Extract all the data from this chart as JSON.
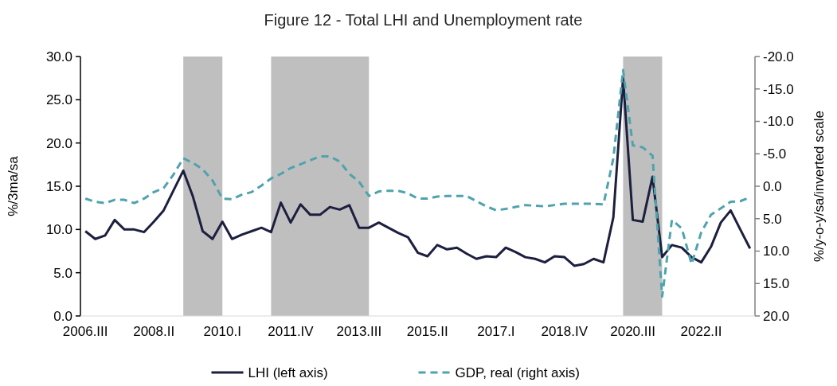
{
  "chart_data": {
    "type": "line",
    "title": "Figure 12 - Total LHI and Unemployment rate",
    "ylabel": "%/3ma/sa",
    "y2label": "%/y-o-y/sa/inverted scale",
    "x": [
      "2006-07",
      "2006-10",
      "2007-01",
      "2007-04",
      "2007-07",
      "2007-10",
      "2008-01",
      "2008-04",
      "2008-07",
      "2008-10",
      "2009-01",
      "2009-04",
      "2009-07",
      "2009-10",
      "2010-01",
      "2010-04",
      "2010-07",
      "2010-10",
      "2011-01",
      "2011-04",
      "2011-07",
      "2011-10",
      "2012-01",
      "2012-04",
      "2012-07",
      "2012-10",
      "2013-01",
      "2013-04",
      "2013-07",
      "2013-10",
      "2014-01",
      "2014-04",
      "2014-07",
      "2014-10",
      "2015-01",
      "2015-04",
      "2015-07",
      "2015-10",
      "2016-01",
      "2016-04",
      "2016-07",
      "2016-10",
      "2017-01",
      "2017-04",
      "2017-07",
      "2017-10",
      "2018-01",
      "2018-04",
      "2018-07",
      "2018-10",
      "2019-01",
      "2019-04",
      "2019-07",
      "2019-10",
      "2020-01",
      "2020-04",
      "2020-07",
      "2020-10",
      "2021-01",
      "2021-04",
      "2021-07",
      "2021-10",
      "2022-01",
      "2022-04",
      "2022-07",
      "2022-10",
      "2023-01",
      "2023-04",
      "2023-07"
    ],
    "xlim": [
      "2006-05-16",
      "2023-08-16"
    ],
    "xticks": [
      {
        "value": "2006-07",
        "label": "2006.III"
      },
      {
        "value": "2008-04",
        "label": "2008.II"
      },
      {
        "value": "2010-01",
        "label": "2010.I"
      },
      {
        "value": "2011-10",
        "label": "2011.IV"
      },
      {
        "value": "2013-07",
        "label": "2013.III"
      },
      {
        "value": "2015-04",
        "label": "2015.II"
      },
      {
        "value": "2017-01",
        "label": "2017.I"
      },
      {
        "value": "2018-10",
        "label": "2018.IV"
      },
      {
        "value": "2020-07",
        "label": "2020.III"
      },
      {
        "value": "2022-04",
        "label": "2022.II"
      }
    ],
    "ylim": [
      0,
      30
    ],
    "yticks": [
      {
        "value": 0,
        "label": "0.0"
      },
      {
        "value": 5,
        "label": "5.0"
      },
      {
        "value": 10,
        "label": "10.0"
      },
      {
        "value": 15,
        "label": "15.0"
      },
      {
        "value": 20,
        "label": "20.0"
      },
      {
        "value": 25,
        "label": "25.0"
      },
      {
        "value": 30,
        "label": "30.0"
      }
    ],
    "y2lim": [
      20,
      -20
    ],
    "y2ticks": [
      {
        "value": -20,
        "label": "-20.0"
      },
      {
        "value": -15,
        "label": "-15.0"
      },
      {
        "value": -10,
        "label": "-10.0"
      },
      {
        "value": -5,
        "label": "-5.0"
      },
      {
        "value": 0,
        "label": "0.0"
      },
      {
        "value": 5,
        "label": "5.0"
      },
      {
        "value": 10,
        "label": "10.0"
      },
      {
        "value": 15,
        "label": "15.0"
      },
      {
        "value": 20,
        "label": "20.0"
      }
    ],
    "series": [
      {
        "name": "LHI (left axis)",
        "color": "#1c1f3f",
        "line_style": "solid",
        "values": [
          9.8,
          8.9,
          9.3,
          11.1,
          10.0,
          10.0,
          9.7,
          10.9,
          12.2,
          14.5,
          16.8,
          13.8,
          9.8,
          8.9,
          10.9,
          8.9,
          9.4,
          9.8,
          10.2,
          9.7,
          13.1,
          10.8,
          12.9,
          11.7,
          11.7,
          12.6,
          12.3,
          12.8,
          10.2,
          10.2,
          10.8,
          10.2,
          9.6,
          9.1,
          7.3,
          6.9,
          8.2,
          7.7,
          7.9,
          7.2,
          6.6,
          6.9,
          6.8,
          7.9,
          7.4,
          6.8,
          6.6,
          6.2,
          6.9,
          6.8,
          5.8,
          6.0,
          6.6,
          6.2,
          11.4,
          27.5,
          11.1,
          10.9,
          16.1,
          6.8,
          8.2,
          7.9,
          6.8,
          6.2,
          8.0,
          10.8,
          12.2,
          10.0,
          7.8
        ]
      },
      {
        "name": "GDP, real (right axis)",
        "color": "#4ea3ad",
        "axis": "y2",
        "line_style": "dashed",
        "values": [
          1.9,
          2.4,
          2.6,
          2.1,
          2.1,
          2.6,
          1.9,
          0.9,
          0.3,
          -1.8,
          -4.3,
          -3.6,
          -2.6,
          -0.9,
          1.9,
          2.0,
          1.3,
          0.9,
          -0.1,
          -1.2,
          -1.9,
          -2.8,
          -3.4,
          -4.0,
          -4.6,
          -4.6,
          -3.8,
          -1.9,
          -0.7,
          1.5,
          0.8,
          0.7,
          0.7,
          1.1,
          1.9,
          1.9,
          1.6,
          1.5,
          1.5,
          1.5,
          2.3,
          3.1,
          3.7,
          3.5,
          3.2,
          2.9,
          3.0,
          3.1,
          2.9,
          2.7,
          2.7,
          2.7,
          2.7,
          2.8,
          -4.3,
          -17.9,
          -6.3,
          -6.0,
          -4.7,
          17.0,
          5.2,
          6.5,
          12.0,
          7.1,
          4.4,
          3.4,
          2.4,
          2.3,
          1.7
        ]
      }
    ],
    "bands": [
      {
        "axis": "x",
        "from": "2009-01",
        "to": "2010-01",
        "color": "#bfbfbf"
      },
      {
        "axis": "x",
        "from": "2011-04",
        "to": "2013-10",
        "color": "#bfbfbf"
      },
      {
        "axis": "x",
        "from": "2020-04",
        "to": "2021-04",
        "color": "#bfbfbf"
      }
    ],
    "legend": "bottom"
  }
}
